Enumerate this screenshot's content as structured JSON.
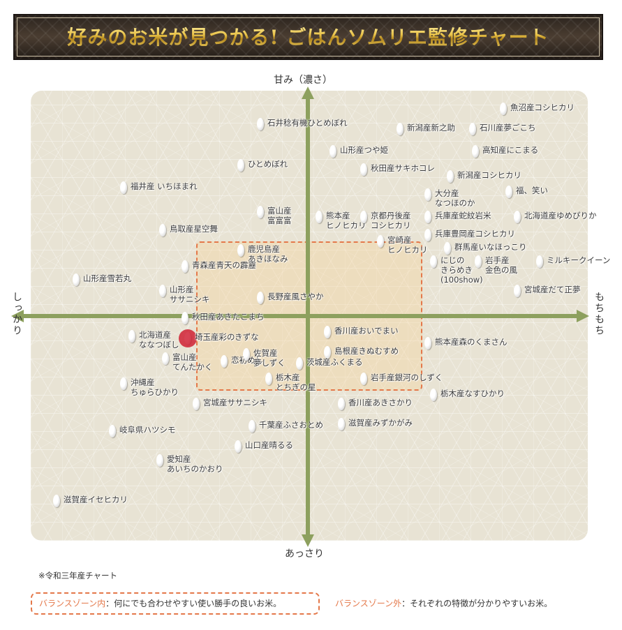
{
  "title": "好みのお米が見つかる! ごはんソムリエ監修チャート",
  "axes": {
    "top": "甘み（濃さ）",
    "bottom": "あっさり",
    "left": "しっかり",
    "right": "もちもち",
    "axis_color": "#8da05e"
  },
  "chart_data": {
    "type": "scatter",
    "xlim": [
      -1,
      1
    ],
    "ylim": [
      -1,
      1
    ],
    "x_negative": "しっかり",
    "x_positive": "もちもち",
    "y_positive": "甘み（濃さ）",
    "y_negative": "あっさり",
    "grid": false,
    "balance_zone": {
      "x": [
        -0.4,
        0.41
      ],
      "y": [
        -0.33,
        0.33
      ],
      "color": "#e4784a"
    },
    "points": [
      {
        "label": "魚沼産コシヒカリ",
        "x": 0.7,
        "y": 0.92
      },
      {
        "label": "石井稔有機ひとめぼれ",
        "x": -0.17,
        "y": 0.85
      },
      {
        "label": "新潟産新之助",
        "x": 0.33,
        "y": 0.83
      },
      {
        "label": "石川産夢ごこち",
        "x": 0.59,
        "y": 0.83
      },
      {
        "label": "山形産つや姫",
        "x": 0.09,
        "y": 0.73
      },
      {
        "label": "高知産にこまる",
        "x": 0.6,
        "y": 0.73
      },
      {
        "label": "ひとめぼれ",
        "x": -0.24,
        "y": 0.67
      },
      {
        "label": "秋田産サキホコレ",
        "x": 0.2,
        "y": 0.65
      },
      {
        "label": "新潟産コシヒカリ",
        "x": 0.51,
        "y": 0.62
      },
      {
        "label": "福井産 いちほまれ",
        "x": -0.66,
        "y": 0.57
      },
      {
        "label": "大分産\nなつほのか",
        "x": 0.43,
        "y": 0.54
      },
      {
        "label": "福、笑い",
        "x": 0.72,
        "y": 0.55
      },
      {
        "label": "富山産\n富富富",
        "x": -0.17,
        "y": 0.46
      },
      {
        "label": "熊本産\nヒノヒカリ",
        "x": 0.04,
        "y": 0.44
      },
      {
        "label": "京都丹後産\nコシヒカリ",
        "x": 0.2,
        "y": 0.44
      },
      {
        "label": "兵庫産蛇紋岩米",
        "x": 0.43,
        "y": 0.44
      },
      {
        "label": "北海道産ゆめぴりか",
        "x": 0.75,
        "y": 0.44
      },
      {
        "label": "鳥取産星空舞",
        "x": -0.52,
        "y": 0.38
      },
      {
        "label": "兵庫豊岡産コシヒカリ",
        "x": 0.43,
        "y": 0.36
      },
      {
        "label": "宮崎産\nヒノヒカリ",
        "x": 0.26,
        "y": 0.33
      },
      {
        "label": "鹿児島産\nあきほなみ",
        "x": -0.24,
        "y": 0.29
      },
      {
        "label": "群馬産いなほっこり",
        "x": 0.5,
        "y": 0.3
      },
      {
        "label": "にじの\nきらめき\n(100show)",
        "x": 0.45,
        "y": 0.24
      },
      {
        "label": "岩手産\n金色の風",
        "x": 0.61,
        "y": 0.24
      },
      {
        "label": "ミルキークイーン",
        "x": 0.83,
        "y": 0.24
      },
      {
        "label": "青森産青天の霹靂",
        "x": -0.44,
        "y": 0.22
      },
      {
        "label": "山形産雪若丸",
        "x": -0.83,
        "y": 0.16
      },
      {
        "label": "宮城産だて正夢",
        "x": 0.75,
        "y": 0.11
      },
      {
        "label": "山形産\nササニシキ",
        "x": -0.52,
        "y": 0.11
      },
      {
        "label": "長野産風さやか",
        "x": -0.17,
        "y": 0.08
      },
      {
        "label": "秋田産あきたこまち",
        "x": -0.44,
        "y": -0.01
      },
      {
        "label": "北海道産\nななつぼし",
        "x": -0.63,
        "y": -0.09
      },
      {
        "label": "埼玉産彩のきずな",
        "x": -0.43,
        "y": -0.1,
        "highlighted": true
      },
      {
        "label": "香川産おいでまい",
        "x": 0.07,
        "y": -0.07
      },
      {
        "label": "熊本産森のくまさん",
        "x": 0.43,
        "y": -0.12
      },
      {
        "label": "島根産きぬむすめ",
        "x": 0.07,
        "y": -0.16
      },
      {
        "label": "富山産\nてんたかく",
        "x": -0.51,
        "y": -0.19
      },
      {
        "label": "恋初めし",
        "x": -0.3,
        "y": -0.2
      },
      {
        "label": "佐賀産\n夢しずく",
        "x": -0.22,
        "y": -0.17
      },
      {
        "label": "茨城産ふくまる",
        "x": -0.03,
        "y": -0.21
      },
      {
        "label": "岩手産銀河のしずく",
        "x": 0.2,
        "y": -0.28
      },
      {
        "label": "栃木産\nとちぎの星",
        "x": -0.14,
        "y": -0.28
      },
      {
        "label": "沖縄産\nちゅらひかり",
        "x": -0.66,
        "y": -0.3
      },
      {
        "label": "栃木産なすひかり",
        "x": 0.45,
        "y": -0.35
      },
      {
        "label": "宮城産ササニシキ",
        "x": -0.4,
        "y": -0.39
      },
      {
        "label": "香川産あきさかり",
        "x": 0.12,
        "y": -0.39
      },
      {
        "label": "滋賀産みずかがみ",
        "x": 0.12,
        "y": -0.48
      },
      {
        "label": "千葉産ふさおとめ",
        "x": -0.2,
        "y": -0.49
      },
      {
        "label": "岐阜県ハツシモ",
        "x": -0.7,
        "y": -0.51
      },
      {
        "label": "山口産晴るる",
        "x": -0.25,
        "y": -0.58
      },
      {
        "label": "愛知産\nあいちのかおり",
        "x": -0.53,
        "y": -0.64
      },
      {
        "label": "滋賀産イセヒカリ",
        "x": -0.9,
        "y": -0.82
      }
    ]
  },
  "footer": {
    "note": "※令和三年産チャート",
    "legend_in_label": "バランスゾーン内",
    "legend_in_text": "：何にでも合わせやすい使い勝手の良いお米。",
    "legend_out_label": "バランスゾーン外",
    "legend_out_text": "：それぞれの特徴が分かりやすいお米。"
  }
}
